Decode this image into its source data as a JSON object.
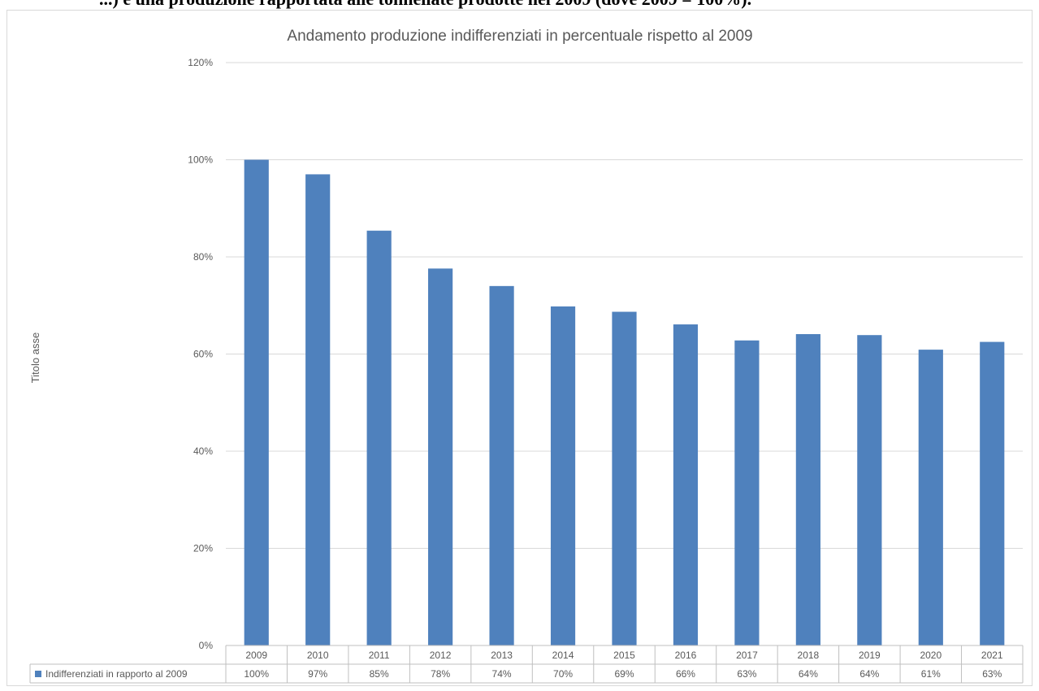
{
  "page_header_text": "...) e una produzione rapportata alle tonnellate prodotte nel 2009 (dove 2009 = 100%).",
  "chart_data": {
    "type": "bar",
    "title": "Andamento produzione indifferenziati in percentuale rispetto al 2009",
    "ylabel": "Titolo asse",
    "xlabel": "",
    "categories": [
      "2009",
      "2010",
      "2011",
      "2012",
      "2013",
      "2014",
      "2015",
      "2016",
      "2017",
      "2018",
      "2019",
      "2020",
      "2021"
    ],
    "series": [
      {
        "name": "Indifferenziati in rapporto al 2009",
        "values": [
          1.0,
          0.97,
          0.854,
          0.776,
          0.74,
          0.698,
          0.687,
          0.661,
          0.628,
          0.641,
          0.639,
          0.609,
          0.625
        ],
        "table_labels": [
          "100%",
          "97%",
          "85%",
          "78%",
          "74%",
          "70%",
          "69%",
          "66%",
          "63%",
          "64%",
          "64%",
          "61%",
          "63%"
        ],
        "color": "#4f81bd"
      }
    ],
    "ylim": [
      0,
      1.2
    ],
    "yticks": [
      0,
      0.2,
      0.4,
      0.6,
      0.8,
      1.0,
      1.2
    ],
    "ytick_labels": [
      "0%",
      "20%",
      "40%",
      "60%",
      "80%",
      "100%",
      "120%"
    ],
    "grid": true,
    "legend": "data-table-left",
    "colors": {
      "bar": "#4f81bd",
      "grid": "#d9d9d9",
      "table_border": "#bfbfbf",
      "text": "#595959"
    }
  }
}
